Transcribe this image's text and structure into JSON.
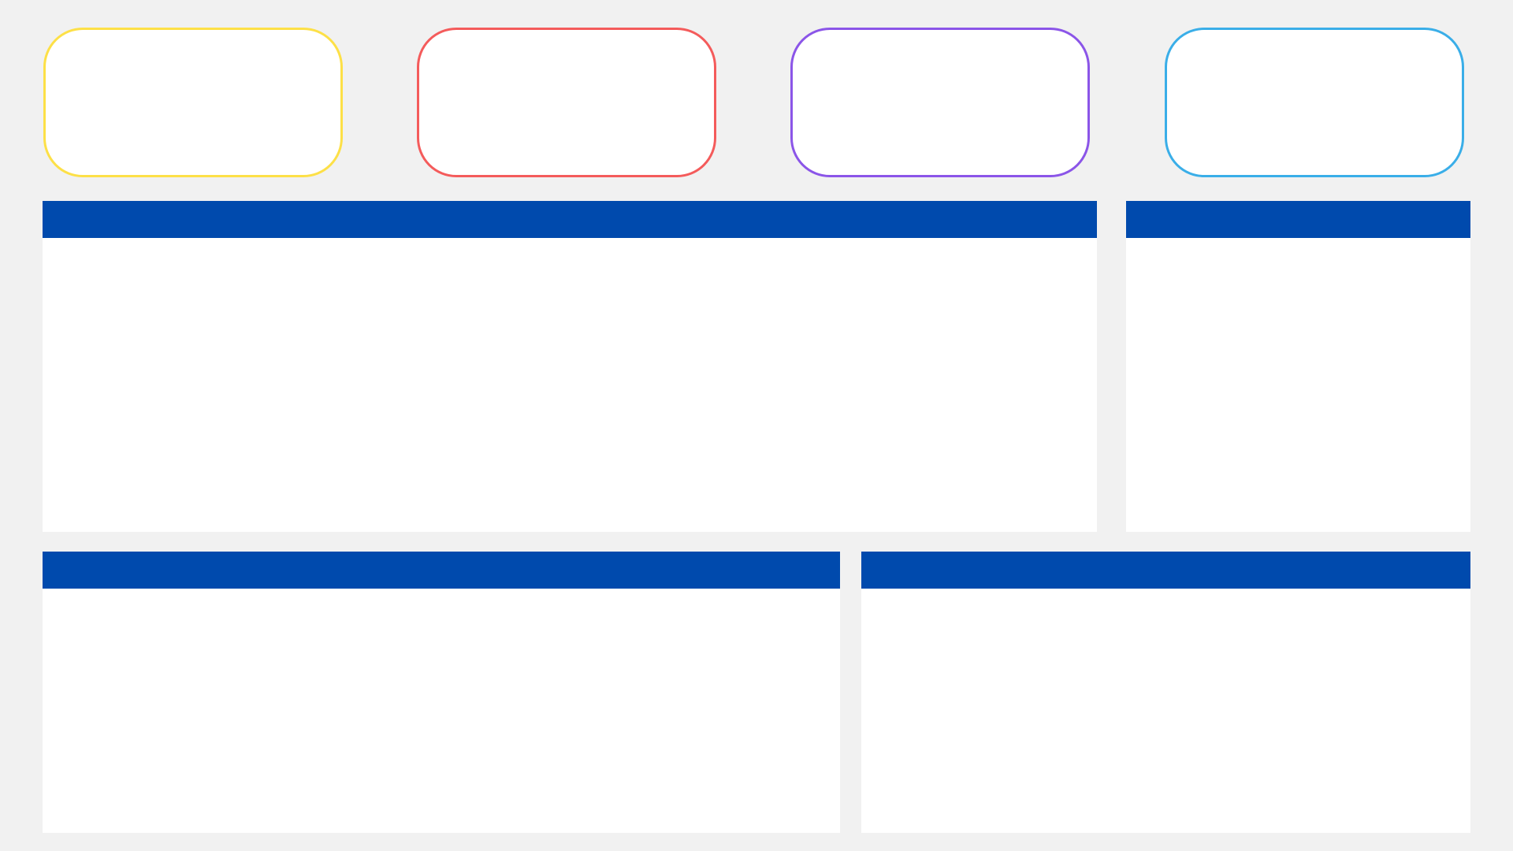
{
  "theme": {
    "background": "#f1f1f1",
    "panel_header_color": "#004aad"
  },
  "kpi_cards": [
    {
      "border_color": "#fde047"
    },
    {
      "border_color": "#f45b5b"
    },
    {
      "border_color": "#8b55e8"
    },
    {
      "border_color": "#3aaee8"
    }
  ],
  "panels": {
    "main_chart": {},
    "side_chart": {},
    "bottom_left": {},
    "bottom_right": {}
  }
}
